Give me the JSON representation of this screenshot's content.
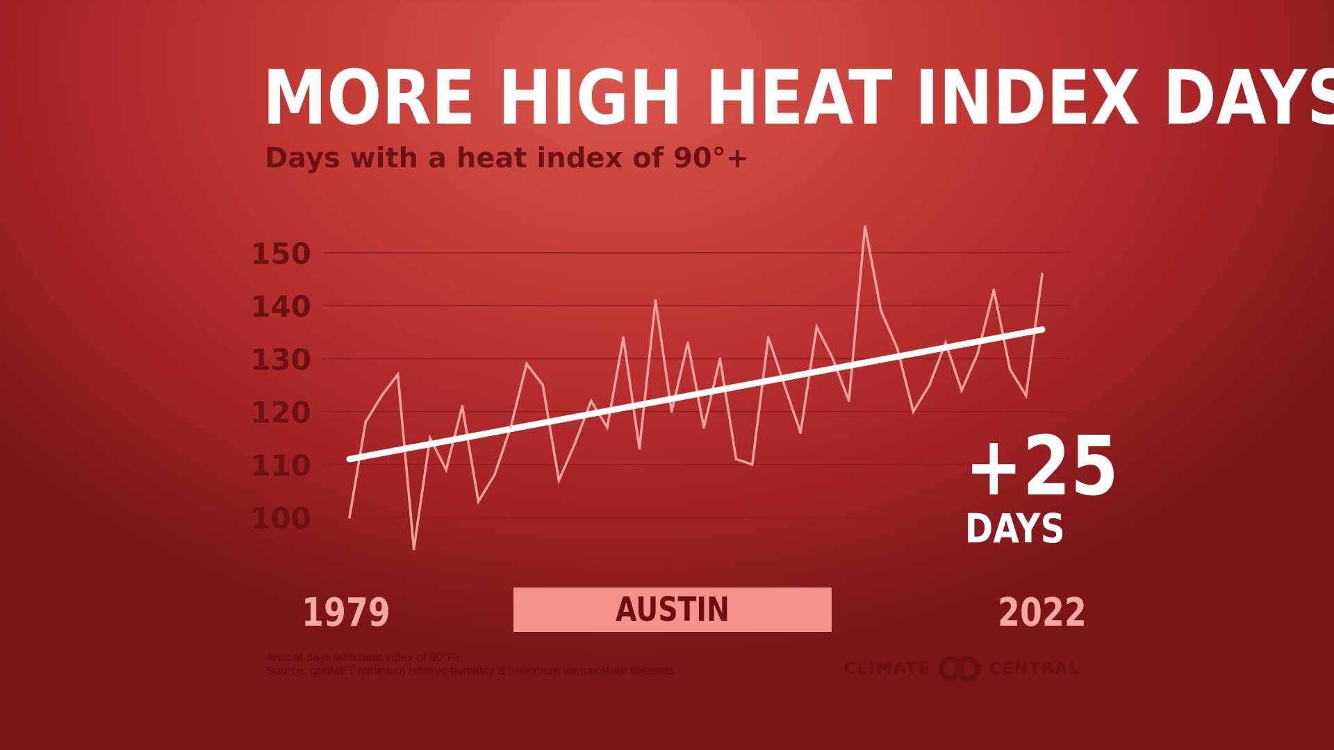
{
  "title": "MORE HIGH HEAT INDEX DAYS",
  "subtitle": "Days with a heat index of 90°+",
  "location": "AUSTIN",
  "start_year": "1979",
  "end_year": "2022",
  "change": {
    "value": "+25",
    "unit": "DAYS"
  },
  "notes": [
    "Annual days with heat index of 90°F+.",
    "Source: gridMET minimum relative humidity & maximum temperature datasets"
  ],
  "logo": {
    "left_text": "CLIMATE",
    "right_text": "CENTRAL"
  },
  "colors": {
    "data_line": "#f6a39e",
    "trend_line": "#ffffff",
    "grid_line": "#8e1d20",
    "tick_text": "#6e1114"
  },
  "chart_data": {
    "type": "line",
    "title": "MORE HIGH HEAT INDEX DAYS",
    "subtitle": "Days with a heat index of 90°+",
    "xlabel": "",
    "ylabel": "",
    "grid": true,
    "xlim": [
      1979,
      2022
    ],
    "ylim": [
      90,
      160
    ],
    "yticks": [
      100,
      110,
      120,
      130,
      140,
      150
    ],
    "x": [
      1979,
      1980,
      1981,
      1982,
      1983,
      1984,
      1985,
      1986,
      1987,
      1988,
      1989,
      1990,
      1991,
      1992,
      1993,
      1994,
      1995,
      1996,
      1997,
      1998,
      1999,
      2000,
      2001,
      2002,
      2003,
      2004,
      2005,
      2006,
      2007,
      2008,
      2009,
      2010,
      2011,
      2012,
      2013,
      2014,
      2015,
      2016,
      2017,
      2018,
      2019,
      2020,
      2021,
      2022
    ],
    "series": [
      {
        "values": [
          100,
          118,
          123,
          127,
          94,
          115,
          109,
          121,
          103,
          108,
          117,
          129,
          125,
          107,
          114,
          122,
          117,
          134,
          113,
          141,
          120,
          133,
          117,
          130,
          111,
          110,
          134,
          125,
          116,
          136,
          130,
          122,
          155,
          139,
          132,
          120,
          125,
          133,
          124,
          131,
          143,
          128,
          123,
          146
        ]
      },
      {
        "type": "trend",
        "x": [
          1979,
          2022
        ],
        "values": [
          111,
          135.5
        ]
      }
    ]
  }
}
